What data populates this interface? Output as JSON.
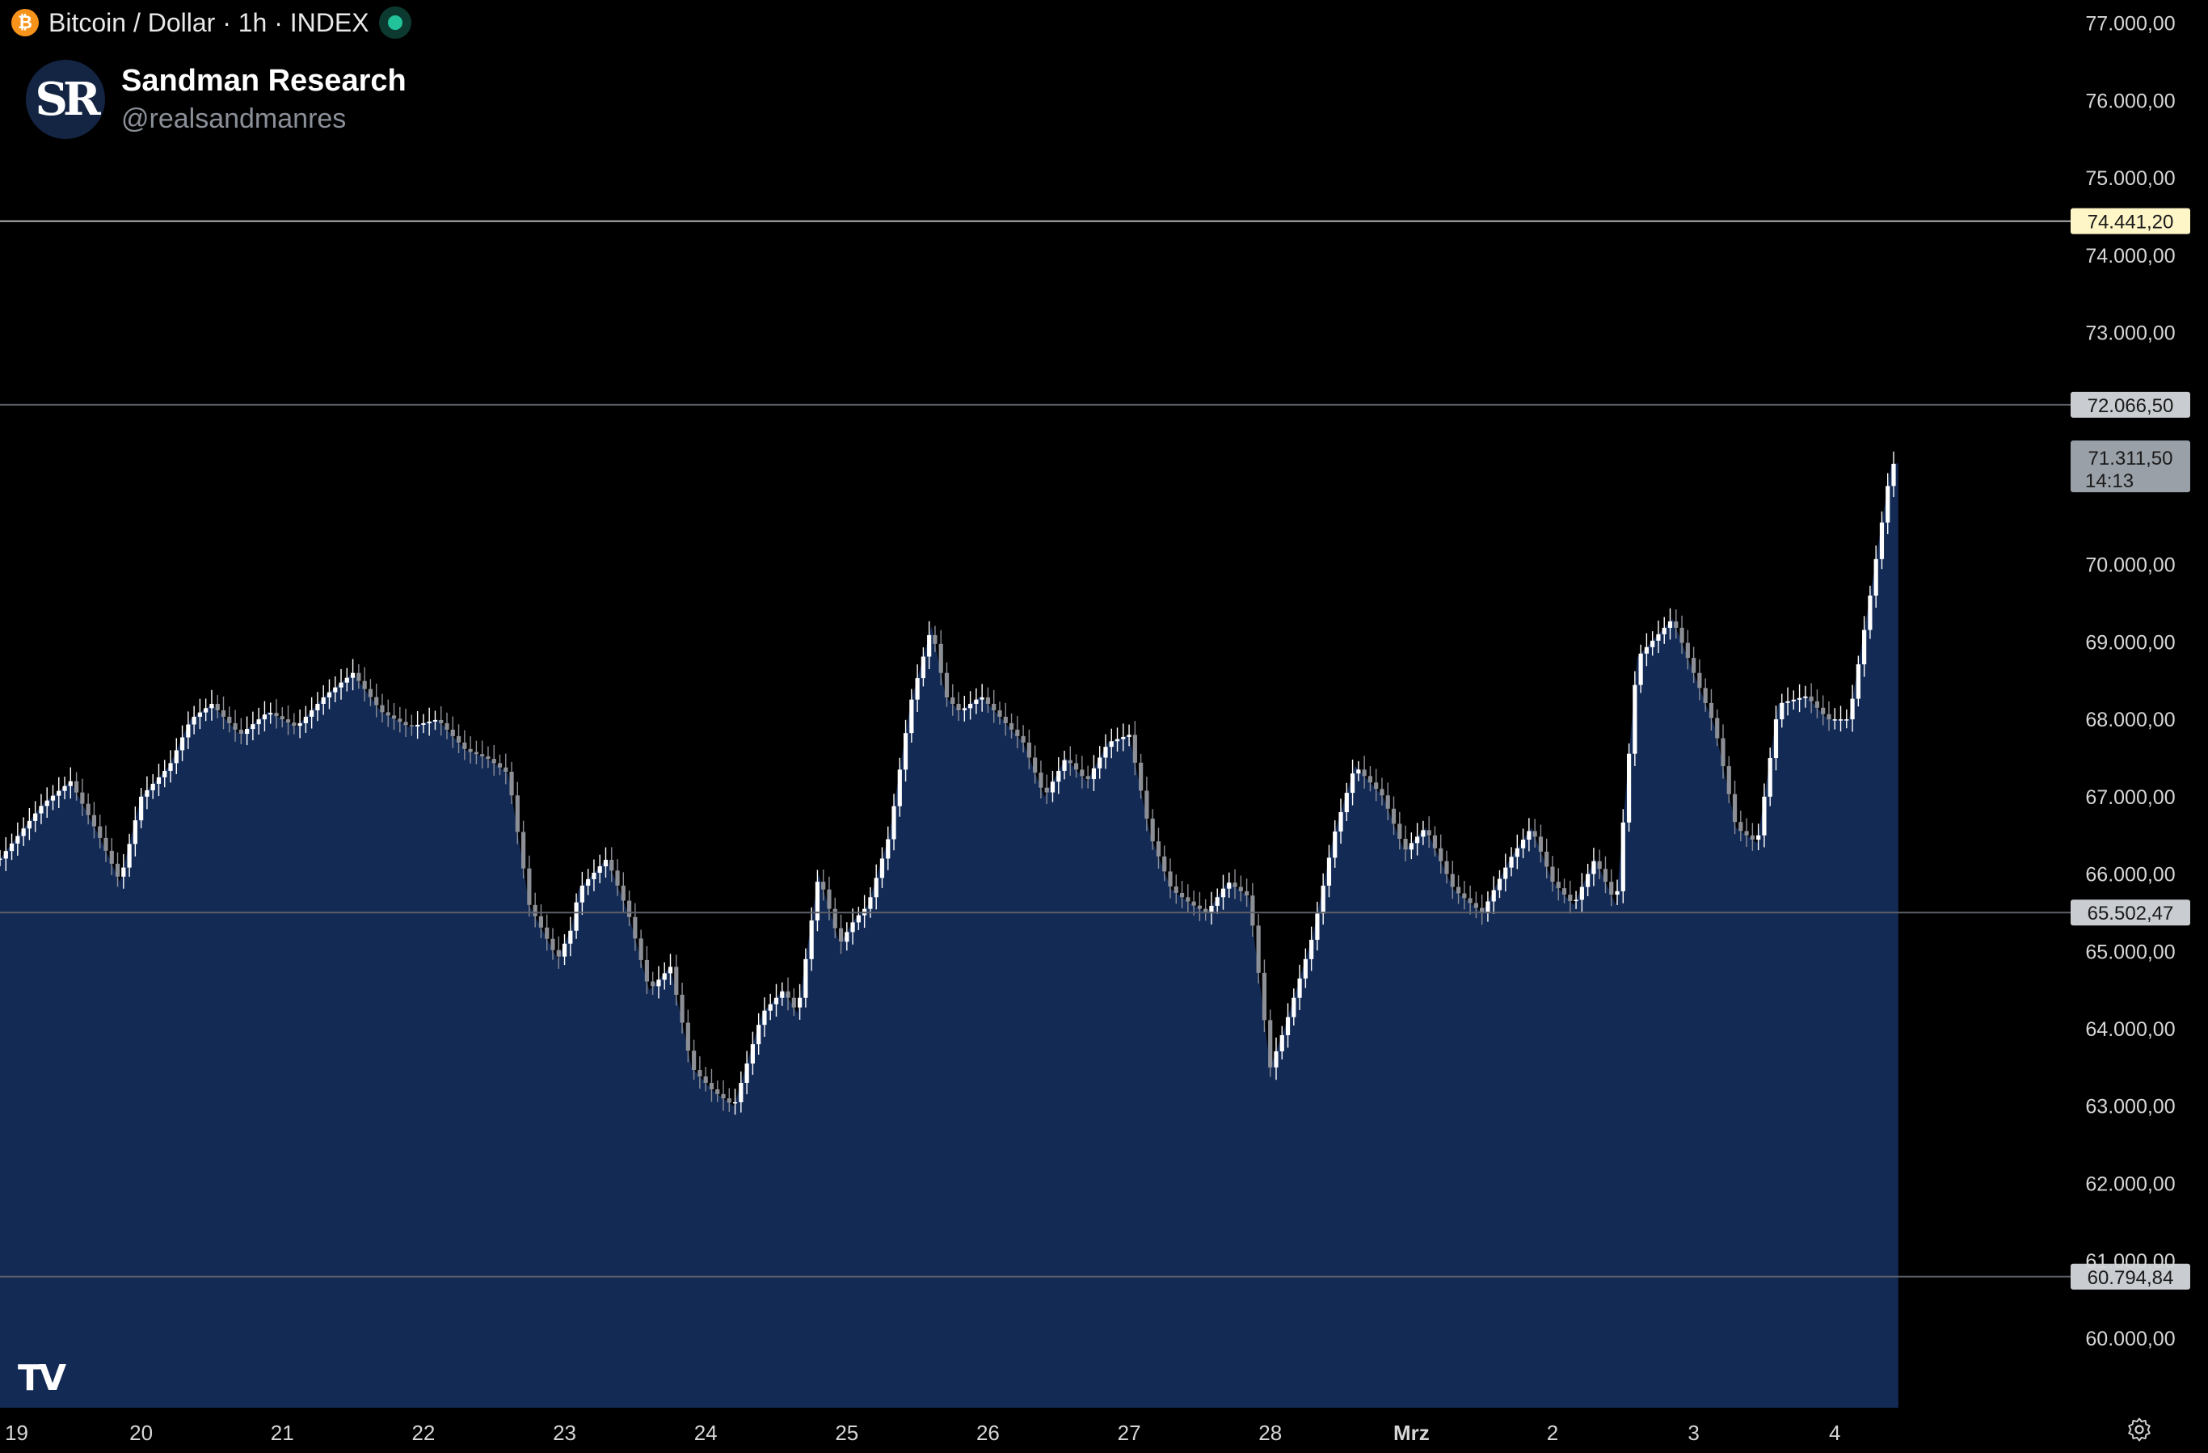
{
  "header": {
    "symbol_title": "Bitcoin / Dollar · 1h · INDEX",
    "symbol_icon": "bitcoin-icon",
    "symbol_glyph": "₿",
    "live_indicator": "market-open-dot"
  },
  "brand": {
    "logo_text": "SR",
    "name": "Sandman Research",
    "handle": "@realsandmanres"
  },
  "watermark": "TV",
  "colors": {
    "background": "#000000",
    "area_fill": "#132a55",
    "candle_up": "#ffffff",
    "candle_down": "#8c8f96",
    "axis_text": "#d6d6d6",
    "bitcoin": "#f7931a",
    "live": "#22c39a"
  },
  "chart_data": {
    "type": "area",
    "title": "Bitcoin / Dollar · 1h · INDEX",
    "xlabel": "",
    "ylabel": "",
    "ylim": [
      59100,
      77300
    ],
    "grid": false,
    "y_ticks": [
      "77.000,00",
      "76.000,00",
      "75.000,00",
      "74.000,00",
      "73.000,00",
      "70.000,00",
      "69.000,00",
      "68.000,00",
      "67.000,00",
      "66.000,00",
      "65.000,00",
      "64.000,00",
      "63.000,00",
      "62.000,00",
      "61.000,00",
      "60.000,00"
    ],
    "y_tick_values": [
      77000,
      76000,
      75000,
      74000,
      73000,
      70000,
      69000,
      68000,
      67000,
      66000,
      65000,
      64000,
      63000,
      62000,
      61000,
      60000
    ],
    "x_ticks": [
      "19",
      "20",
      "21",
      "22",
      "23",
      "24",
      "25",
      "26",
      "27",
      "28",
      "Mrz",
      "2",
      "3",
      "4"
    ],
    "x_tick_values": [
      19,
      20,
      21,
      22,
      23,
      24,
      25,
      26,
      27,
      28,
      29,
      30,
      31,
      32
    ],
    "x_domain": [
      19.0,
      33.35
    ],
    "series": [
      {
        "x": [
          19.0,
          19.3,
          19.5,
          19.7,
          19.85,
          20.0,
          20.2,
          20.35,
          20.5,
          20.7,
          20.9,
          21.1,
          21.3,
          21.5,
          21.7,
          21.9,
          22.1,
          22.3,
          22.45,
          22.6,
          22.75,
          22.95,
          23.05,
          23.1,
          23.3,
          23.45,
          23.6,
          23.75,
          23.9,
          24.05,
          24.2,
          24.4,
          24.55,
          24.65,
          24.8,
          24.95,
          25.05,
          25.15,
          25.3,
          25.45,
          25.6,
          25.7,
          25.8,
          25.95,
          26.1,
          26.25,
          26.4,
          26.55,
          26.7,
          26.85,
          27.0,
          27.15,
          27.3,
          27.45,
          27.55,
          27.7,
          27.85,
          28.0,
          28.1,
          28.3,
          28.45,
          28.6,
          28.8,
          28.95,
          29.1,
          29.3,
          29.5,
          29.7,
          29.85,
          30.0,
          30.15,
          30.3,
          30.45,
          30.6,
          30.7,
          30.85,
          31.0,
          31.15,
          31.3,
          31.45,
          31.6,
          31.8,
          31.95,
          32.1,
          32.25,
          32.4,
          32.45
        ],
        "values": [
          66200,
          66900,
          67200,
          66500,
          65900,
          67000,
          67400,
          68000,
          68200,
          67800,
          68100,
          67900,
          68300,
          68600,
          68100,
          67900,
          68000,
          67600,
          67500,
          67300,
          65600,
          64900,
          65300,
          65800,
          66200,
          65500,
          64500,
          64800,
          63500,
          63200,
          63000,
          64200,
          64500,
          64200,
          66000,
          65100,
          65400,
          65600,
          66500,
          68200,
          69200,
          68300,
          68100,
          68300,
          68000,
          67700,
          67000,
          67500,
          67200,
          67700,
          67800,
          66500,
          65800,
          65600,
          65500,
          65900,
          65700,
          63500,
          64000,
          65200,
          66500,
          67400,
          67000,
          66300,
          66600,
          65800,
          65500,
          66200,
          66600,
          65900,
          65600,
          66200,
          65600,
          68800,
          69000,
          69300,
          68600,
          67900,
          66600,
          66400,
          68200,
          68300,
          68000,
          68000,
          69600,
          71300,
          71311.5
        ]
      }
    ],
    "price_lines": [
      {
        "label": "74.441,20",
        "value": 74441.2,
        "style": "highlight"
      },
      {
        "label": "72.066,50",
        "value": 72066.5,
        "style": "gray"
      },
      {
        "label": "65.502,47",
        "value": 65502.47,
        "style": "gray"
      },
      {
        "label": "60.794,84",
        "value": 60794.84,
        "style": "gray"
      }
    ],
    "last_price": {
      "label": "71.311,50",
      "countdown": "14:13",
      "value": 71311.5
    }
  }
}
